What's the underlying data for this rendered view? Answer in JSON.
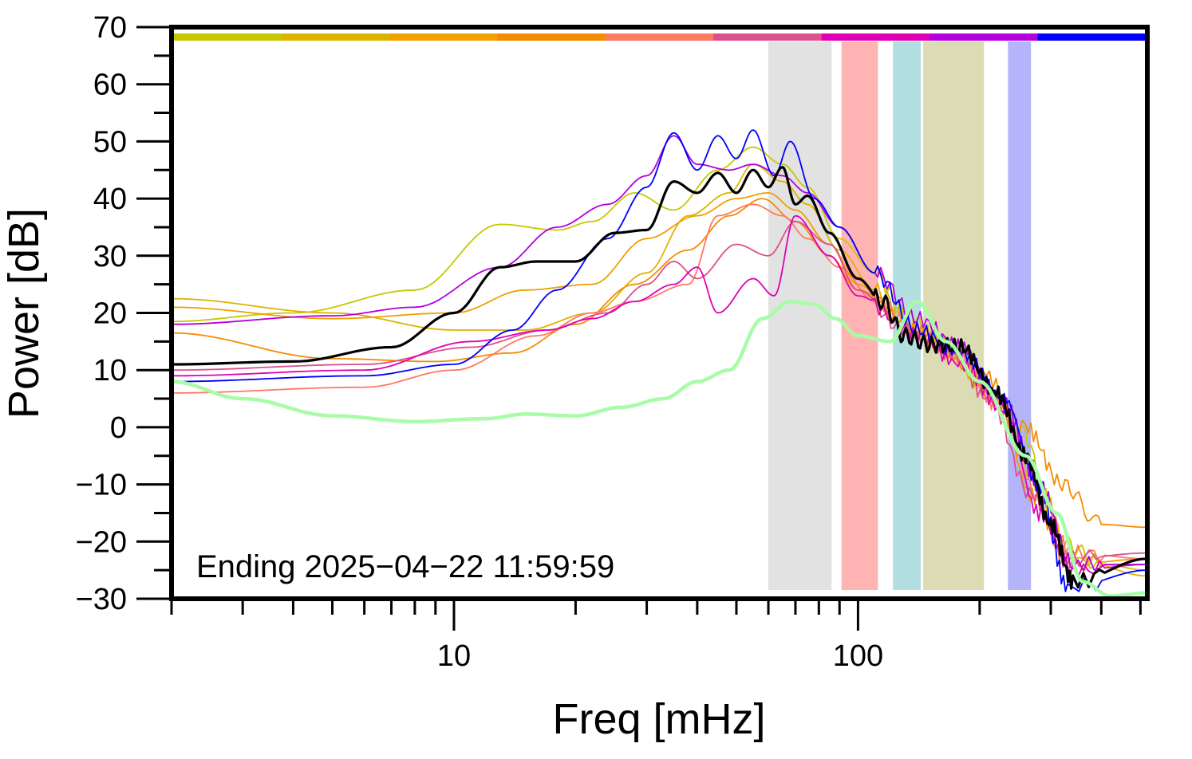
{
  "chart_data": {
    "type": "line",
    "xlabel": "Freq [mHz]",
    "ylabel": "Power [dB]",
    "xscale": "log",
    "xlim": [
      2,
      520
    ],
    "ylim": [
      -30,
      70
    ],
    "x_tick_labels": [
      "10",
      "100"
    ],
    "x_ticks": [
      10,
      100
    ],
    "y_ticks": [
      -30,
      -20,
      -10,
      0,
      10,
      20,
      30,
      40,
      50,
      60,
      70
    ],
    "y_tick_labels": [
      "−30",
      "−20",
      "−10",
      "0",
      "10",
      "20",
      "30",
      "40",
      "50",
      "60",
      "70"
    ],
    "annotation": "Ending 2025−04−22 11:59:59",
    "grid": false,
    "legend": "none",
    "bands": [
      {
        "x": [
          60,
          86
        ],
        "color": "#e2e2e2"
      },
      {
        "x": [
          91,
          112
        ],
        "color": "#ffb3b3"
      },
      {
        "x": [
          122,
          143
        ],
        "color": "#b4dfe0"
      },
      {
        "x": [
          145,
          205
        ],
        "color": "#dcdcb4"
      },
      {
        "x": [
          235,
          268
        ],
        "color": "#b4b4fa"
      }
    ],
    "color_bar": [
      "#c8c800",
      "#dcb400",
      "#f0a000",
      "#f58c00",
      "#ff7864",
      "#dc508c",
      "#e100b4",
      "#b400dc",
      "#0000ff"
    ],
    "series": [
      {
        "color": "#c8c800",
        "points": [
          [
            2,
            18.5
          ],
          [
            4,
            20
          ],
          [
            8,
            24
          ],
          [
            13,
            35.5
          ],
          [
            18,
            34.5
          ],
          [
            22,
            36
          ],
          [
            28,
            41
          ],
          [
            35,
            38
          ],
          [
            45,
            45
          ],
          [
            55,
            49
          ],
          [
            65,
            46
          ],
          [
            75,
            42
          ],
          [
            90,
            33
          ],
          [
            110,
            27
          ],
          [
            130,
            20
          ],
          [
            160,
            15
          ],
          [
            200,
            8
          ],
          [
            250,
            0
          ],
          [
            320,
            -20
          ],
          [
            400,
            -24
          ],
          [
            520,
            -25
          ]
        ]
      },
      {
        "color": "#dcb400",
        "points": [
          [
            2,
            22.5
          ],
          [
            5,
            20
          ],
          [
            10,
            17
          ],
          [
            15,
            17
          ],
          [
            22,
            20
          ],
          [
            30,
            27
          ],
          [
            38,
            37
          ],
          [
            48,
            41
          ],
          [
            55,
            46
          ],
          [
            65,
            43
          ],
          [
            75,
            39
          ],
          [
            90,
            31
          ],
          [
            110,
            24
          ],
          [
            140,
            17
          ],
          [
            180,
            13
          ],
          [
            220,
            5
          ],
          [
            280,
            -10
          ],
          [
            340,
            -23
          ],
          [
            520,
            -26
          ]
        ]
      },
      {
        "color": "#f0a000",
        "points": [
          [
            2,
            21
          ],
          [
            5,
            19
          ],
          [
            10,
            20
          ],
          [
            15,
            24
          ],
          [
            22,
            25
          ],
          [
            30,
            33
          ],
          [
            40,
            37
          ],
          [
            50,
            40
          ],
          [
            60,
            41
          ],
          [
            70,
            38
          ],
          [
            85,
            32
          ],
          [
            100,
            25
          ],
          [
            130,
            18
          ],
          [
            170,
            13
          ],
          [
            220,
            5
          ],
          [
            270,
            -12
          ],
          [
            330,
            -24
          ],
          [
            520,
            -23
          ]
        ]
      },
      {
        "color": "#f58c00",
        "points": [
          [
            2,
            16.5
          ],
          [
            5,
            12
          ],
          [
            9,
            11.5
          ],
          [
            14,
            13
          ],
          [
            20,
            18
          ],
          [
            28,
            25
          ],
          [
            38,
            31
          ],
          [
            48,
            37
          ],
          [
            58,
            40
          ],
          [
            70,
            36
          ],
          [
            85,
            30
          ],
          [
            100,
            24
          ],
          [
            140,
            17
          ],
          [
            200,
            10
          ],
          [
            260,
            0
          ],
          [
            320,
            -10
          ],
          [
            400,
            -17
          ],
          [
            520,
            -17.5
          ]
        ]
      },
      {
        "color": "#ff7864",
        "points": [
          [
            2,
            6
          ],
          [
            6,
            7
          ],
          [
            10,
            10
          ],
          [
            16,
            16
          ],
          [
            22,
            20
          ],
          [
            28,
            22
          ],
          [
            38,
            25
          ],
          [
            45,
            37
          ],
          [
            55,
            39
          ],
          [
            65,
            37
          ],
          [
            75,
            33
          ],
          [
            90,
            28
          ],
          [
            110,
            22
          ],
          [
            140,
            17
          ],
          [
            180,
            12
          ],
          [
            220,
            4
          ],
          [
            280,
            -12
          ],
          [
            340,
            -22
          ],
          [
            520,
            -23
          ]
        ]
      },
      {
        "color": "#dc508c",
        "points": [
          [
            2,
            10
          ],
          [
            6,
            11
          ],
          [
            11,
            14
          ],
          [
            17,
            17
          ],
          [
            24,
            20
          ],
          [
            30,
            25
          ],
          [
            35,
            29
          ],
          [
            40,
            26
          ],
          [
            50,
            32
          ],
          [
            60,
            30
          ],
          [
            70,
            36
          ],
          [
            85,
            32
          ],
          [
            100,
            24
          ],
          [
            130,
            17
          ],
          [
            170,
            13
          ],
          [
            210,
            5
          ],
          [
            270,
            -12
          ],
          [
            330,
            -23
          ],
          [
            520,
            -22
          ]
        ]
      },
      {
        "color": "#e100b4",
        "points": [
          [
            2,
            9
          ],
          [
            6,
            10
          ],
          [
            11,
            15
          ],
          [
            17,
            17
          ],
          [
            22,
            19
          ],
          [
            28,
            22
          ],
          [
            35,
            25
          ],
          [
            40,
            28
          ],
          [
            45,
            20
          ],
          [
            55,
            26
          ],
          [
            62,
            23
          ],
          [
            70,
            37
          ],
          [
            85,
            30
          ],
          [
            100,
            23
          ],
          [
            140,
            16
          ],
          [
            180,
            11
          ],
          [
            230,
            3
          ],
          [
            280,
            -15
          ],
          [
            340,
            -25
          ],
          [
            520,
            -24
          ]
        ]
      },
      {
        "color": "#b400dc",
        "points": [
          [
            2,
            18
          ],
          [
            5,
            19.5
          ],
          [
            8,
            21
          ],
          [
            13,
            28
          ],
          [
            18,
            35
          ],
          [
            24,
            39
          ],
          [
            30,
            44
          ],
          [
            35,
            51
          ],
          [
            40,
            46
          ],
          [
            48,
            45
          ],
          [
            55,
            46
          ],
          [
            65,
            44
          ],
          [
            75,
            41
          ],
          [
            90,
            35
          ],
          [
            110,
            27
          ],
          [
            140,
            19
          ],
          [
            180,
            14
          ],
          [
            230,
            4
          ],
          [
            280,
            -10
          ],
          [
            340,
            -24
          ],
          [
            520,
            -24
          ]
        ]
      },
      {
        "color": "#0000ff",
        "points": [
          [
            2,
            8
          ],
          [
            6,
            9
          ],
          [
            10,
            11
          ],
          [
            14,
            17
          ],
          [
            18,
            24
          ],
          [
            24,
            33
          ],
          [
            30,
            42
          ],
          [
            35,
            51.5
          ],
          [
            40,
            45
          ],
          [
            45,
            51
          ],
          [
            50,
            47
          ],
          [
            55,
            52
          ],
          [
            62,
            44
          ],
          [
            68,
            50
          ],
          [
            78,
            40
          ],
          [
            90,
            35
          ],
          [
            110,
            27
          ],
          [
            140,
            17
          ],
          [
            180,
            13
          ],
          [
            230,
            5
          ],
          [
            280,
            -10
          ],
          [
            330,
            -28
          ],
          [
            520,
            -25
          ]
        ]
      },
      {
        "color": "#000000",
        "width": 3.2,
        "points": [
          [
            2,
            11
          ],
          [
            4,
            11.5
          ],
          [
            7,
            14
          ],
          [
            10,
            20
          ],
          [
            13,
            28
          ],
          [
            16,
            29
          ],
          [
            20,
            29
          ],
          [
            25,
            34
          ],
          [
            30,
            34.5
          ],
          [
            35,
            43
          ],
          [
            40,
            41
          ],
          [
            45,
            44.5
          ],
          [
            50,
            41
          ],
          [
            55,
            45
          ],
          [
            60,
            42
          ],
          [
            65,
            45.5
          ],
          [
            70,
            39
          ],
          [
            75,
            40.5
          ],
          [
            85,
            34
          ],
          [
            100,
            26
          ],
          [
            115,
            22
          ],
          [
            130,
            16
          ],
          [
            150,
            14.5
          ],
          [
            180,
            14
          ],
          [
            220,
            6
          ],
          [
            260,
            -5
          ],
          [
            300,
            -17
          ],
          [
            340,
            -27
          ],
          [
            520,
            -23
          ]
        ]
      },
      {
        "color": "#a8fca8",
        "width": 4.5,
        "points": [
          [
            2,
            8
          ],
          [
            3,
            5
          ],
          [
            5,
            2
          ],
          [
            8,
            1
          ],
          [
            12,
            1.5
          ],
          [
            15,
            2.3
          ],
          [
            20,
            2
          ],
          [
            26,
            3.5
          ],
          [
            33,
            5
          ],
          [
            40,
            8
          ],
          [
            48,
            10
          ],
          [
            58,
            19
          ],
          [
            68,
            22
          ],
          [
            78,
            21.5
          ],
          [
            88,
            19
          ],
          [
            100,
            16
          ],
          [
            120,
            15
          ],
          [
            140,
            22
          ],
          [
            165,
            15
          ],
          [
            200,
            8
          ],
          [
            260,
            -5
          ],
          [
            310,
            -15
          ],
          [
            360,
            -27
          ],
          [
            420,
            -29.5
          ],
          [
            520,
            -29
          ]
        ]
      }
    ]
  }
}
